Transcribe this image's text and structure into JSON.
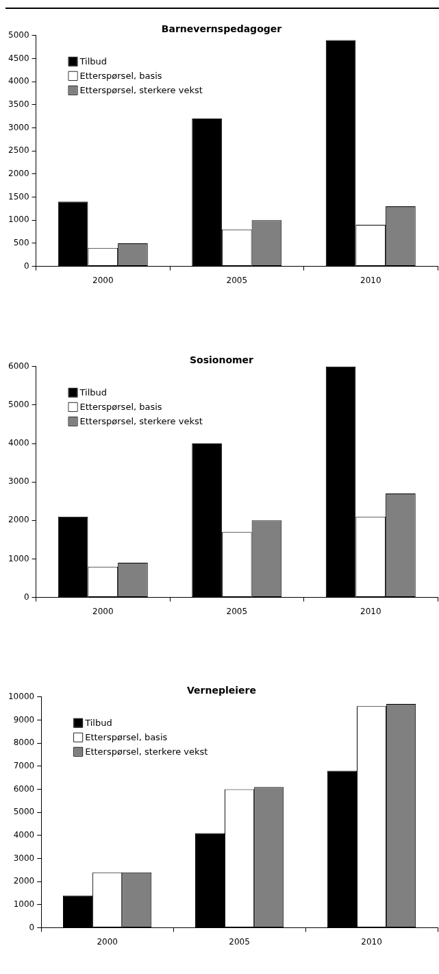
{
  "chart_data": [
    {
      "type": "bar",
      "title": "Barnevernspedagoger",
      "categories": [
        "2000",
        "2005",
        "2010"
      ],
      "series": [
        {
          "name": "Tilbud",
          "color": "#000000",
          "values": [
            1400,
            3200,
            4900
          ]
        },
        {
          "name": "Etterspørsel, basis",
          "color": "#ffffff",
          "values": [
            400,
            800,
            900
          ]
        },
        {
          "name": "Etterspørsel, sterkere vekst",
          "color": "#808080",
          "values": [
            500,
            1000,
            1300
          ]
        }
      ],
      "ylim": [
        0,
        5000
      ],
      "yticks": [
        0,
        500,
        1000,
        1500,
        2000,
        2500,
        3000,
        3500,
        4000,
        4500,
        5000
      ],
      "grid": false,
      "legend": "top left"
    },
    {
      "type": "bar",
      "title": "Sosionomer",
      "categories": [
        "2000",
        "2005",
        "2010"
      ],
      "series": [
        {
          "name": "Tilbud",
          "color": "#000000",
          "values": [
            2100,
            4000,
            6000
          ]
        },
        {
          "name": "Etterspørsel, basis",
          "color": "#ffffff",
          "values": [
            800,
            1700,
            2100
          ]
        },
        {
          "name": "Etterspørsel, sterkere vekst",
          "color": "#808080",
          "values": [
            900,
            2000,
            2700
          ]
        }
      ],
      "ylim": [
        0,
        6000
      ],
      "yticks": [
        0,
        1000,
        2000,
        3000,
        4000,
        5000,
        6000
      ],
      "grid": false,
      "legend": "top left"
    },
    {
      "type": "bar",
      "title": "Vernepleiere",
      "categories": [
        "2000",
        "2005",
        "2010"
      ],
      "series": [
        {
          "name": "Tilbud",
          "color": "#000000",
          "values": [
            1400,
            4100,
            6800
          ]
        },
        {
          "name": "Etterspørsel, basis",
          "color": "#ffffff",
          "values": [
            2400,
            6000,
            9600
          ]
        },
        {
          "name": "Etterspørsel, sterkere vekst",
          "color": "#808080",
          "values": [
            2400,
            6100,
            9700
          ]
        }
      ],
      "ylim": [
        0,
        10000
      ],
      "yticks": [
        0,
        1000,
        2000,
        3000,
        4000,
        5000,
        6000,
        7000,
        8000,
        9000,
        10000
      ],
      "grid": false,
      "legend": "top left"
    }
  ]
}
